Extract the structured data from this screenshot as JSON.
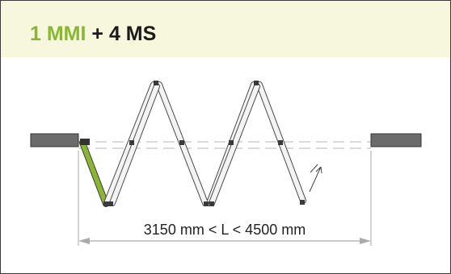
{
  "title": {
    "highlight": "1 MMI",
    "rest": "+ 4 MS"
  },
  "colors": {
    "header_bg": "#f6f7dc",
    "accent_green": "#8ab634",
    "wall_gray": "#6b6b6b",
    "panel_fill": "#f3f3f3",
    "dimension_line": "#aaaaaa"
  },
  "dimension": {
    "label": "3150 mm < L < 4500 mm"
  }
}
